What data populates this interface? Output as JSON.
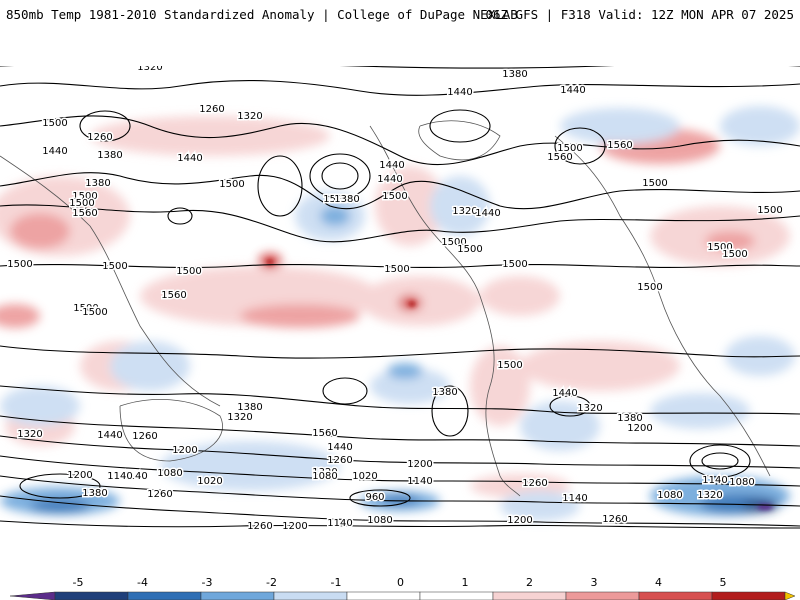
{
  "header": {
    "title_left": "850mb Temp 1981-2010 Standardized Anomaly | College of DuPage NEXLAB",
    "title_right": "06Z GFS | F318 Valid: 12Z MON APR 07 2025"
  },
  "colors": {
    "strong_neg": "#5b2c8a",
    "neg4": "#1f3f7a",
    "neg3": "#2f6fb5",
    "neg2": "#6fa7db",
    "neg1": "#c9dcf2",
    "neutral": "#ffffff",
    "pos1": "#f6d2d2",
    "pos2": "#ec9a9a",
    "pos3": "#d75050",
    "pos4": "#b21d1d",
    "pos5": "#7a0c0c",
    "strong_pos": "#f2c200",
    "coast": "#555555",
    "contour": "#000000"
  },
  "colorbar": {
    "ticks": [
      "-5",
      "-4",
      "-3",
      "-2",
      "-1",
      "0",
      "1",
      "2",
      "3",
      "4",
      "5"
    ]
  },
  "contour_labels": [
    {
      "text": "1320"
    },
    {
      "text": "1380"
    },
    {
      "text": "1440"
    },
    {
      "text": "1260"
    },
    {
      "text": "1320"
    },
    {
      "text": "1260"
    },
    {
      "text": "1440"
    },
    {
      "text": "1380"
    },
    {
      "text": "1500"
    },
    {
      "text": "1500"
    },
    {
      "text": "1440"
    },
    {
      "text": "1500"
    },
    {
      "text": "1440"
    },
    {
      "text": "1380"
    },
    {
      "text": "1500"
    },
    {
      "text": "1560"
    },
    {
      "text": "1500"
    },
    {
      "text": "1500"
    },
    {
      "text": "1500"
    },
    {
      "text": "1500"
    },
    {
      "text": "1500"
    },
    {
      "text": "1560"
    },
    {
      "text": "1500"
    },
    {
      "text": "1380"
    },
    {
      "text": "1440"
    },
    {
      "text": "1440"
    },
    {
      "text": "1320"
    },
    {
      "text": "1560"
    },
    {
      "text": "1500"
    },
    {
      "text": "1440"
    },
    {
      "text": "1500"
    },
    {
      "text": "1500"
    },
    {
      "text": "1500"
    },
    {
      "text": "1500"
    },
    {
      "text": "1500"
    },
    {
      "text": "1500"
    },
    {
      "text": "1500"
    },
    {
      "text": "1500"
    },
    {
      "text": "1560"
    },
    {
      "text": "1500"
    },
    {
      "text": "1500"
    },
    {
      "text": "1380"
    },
    {
      "text": "1440"
    },
    {
      "text": "1320"
    },
    {
      "text": "1380"
    },
    {
      "text": "1200"
    },
    {
      "text": "1320"
    },
    {
      "text": "1440"
    },
    {
      "text": "1260"
    },
    {
      "text": "1380"
    },
    {
      "text": "1320"
    },
    {
      "text": "1560"
    },
    {
      "text": "1440"
    },
    {
      "text": "1260"
    },
    {
      "text": "1320"
    },
    {
      "text": "1200"
    },
    {
      "text": "1140"
    },
    {
      "text": "1200"
    },
    {
      "text": "1140"
    },
    {
      "text": "1080"
    },
    {
      "text": "1020"
    },
    {
      "text": "1080"
    },
    {
      "text": "1020"
    },
    {
      "text": "1200"
    },
    {
      "text": "1140"
    },
    {
      "text": "1260"
    },
    {
      "text": "960"
    },
    {
      "text": "1380"
    },
    {
      "text": "1260"
    },
    {
      "text": "1140"
    },
    {
      "text": "1080"
    },
    {
      "text": "1140"
    },
    {
      "text": "1320"
    },
    {
      "text": "1080"
    },
    {
      "text": "1260"
    },
    {
      "text": "1200"
    },
    {
      "text": "1140"
    },
    {
      "text": "1080"
    },
    {
      "text": "1200"
    },
    {
      "text": "1260"
    },
    {
      "text": "1500"
    }
  ]
}
